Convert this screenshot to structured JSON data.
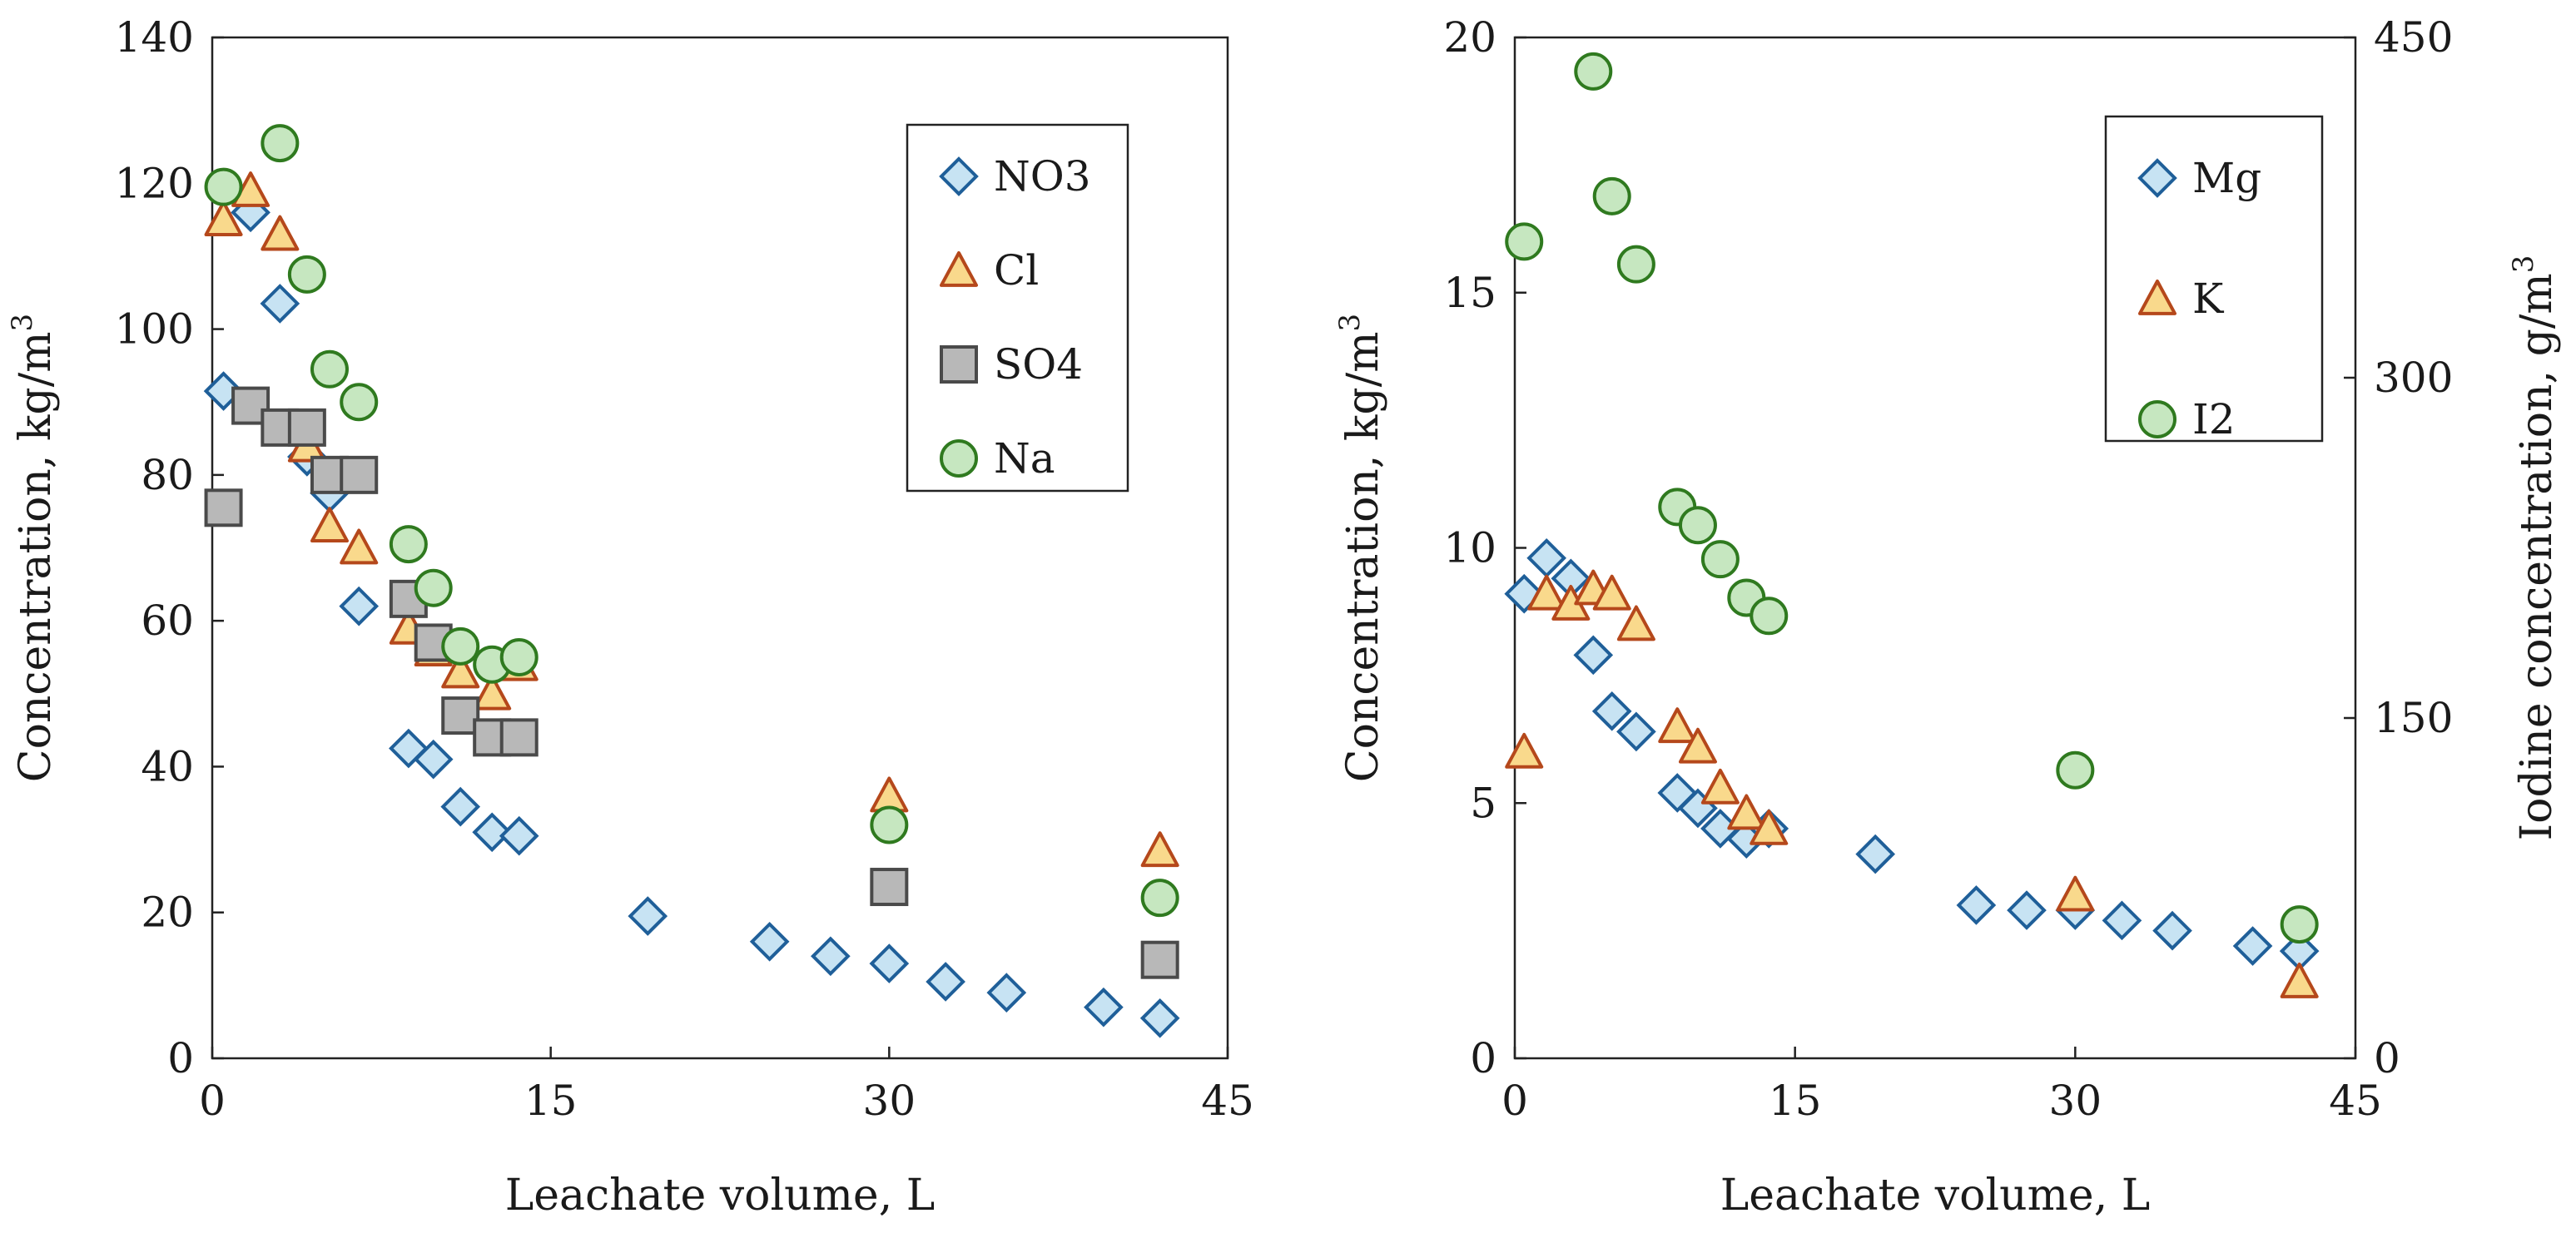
{
  "chart_data": [
    {
      "type": "scatter",
      "title": "",
      "xlabel": "Leachate volume, L",
      "ylabel": "Concentration, kg/m",
      "ylabel_sup": "3",
      "xlim": [
        0,
        45
      ],
      "ylim": [
        0,
        140
      ],
      "xticks": [
        "0",
        "15",
        "30",
        "45"
      ],
      "yticks": [
        "0",
        "20",
        "40",
        "60",
        "80",
        "100",
        "120",
        "140"
      ],
      "legend_position": "top-right",
      "series": [
        {
          "name": "NO3",
          "marker": "diamond",
          "fill": "#c7e3f3",
          "stroke": "#1f5f99",
          "x": [
            0.5,
            1.7,
            3.0,
            4.2,
            5.2,
            6.5,
            8.7,
            9.8,
            11.0,
            12.4,
            13.6,
            19.3,
            24.7,
            27.4,
            30.0,
            32.5,
            35.2,
            39.5,
            42.0
          ],
          "y": [
            91.5,
            116.0,
            103.5,
            82.5,
            77.5,
            62.0,
            42.5,
            41.0,
            34.5,
            31.0,
            30.5,
            19.5,
            16.0,
            14.0,
            13.0,
            10.5,
            9.0,
            7.0,
            5.5
          ]
        },
        {
          "name": "Cl",
          "marker": "triangle",
          "fill": "#f9d98c",
          "stroke": "#b5481b",
          "x": [
            0.5,
            1.7,
            3.0,
            4.2,
            5.2,
            6.5,
            8.7,
            9.8,
            11.0,
            12.4,
            13.6,
            30.0,
            42.0
          ],
          "y": [
            115.0,
            119.0,
            113.0,
            84.0,
            73.0,
            70.0,
            59.0,
            56.0,
            53.0,
            50.0,
            54.0,
            36.0,
            28.5
          ]
        },
        {
          "name": "SO4",
          "marker": "square",
          "fill": "#b8b8b8",
          "stroke": "#4a4a4a",
          "x": [
            0.5,
            1.7,
            3.0,
            4.2,
            5.2,
            6.5,
            8.7,
            9.8,
            11.0,
            12.4,
            13.6,
            30.0,
            42.0
          ],
          "y": [
            75.5,
            89.5,
            86.5,
            86.5,
            80.0,
            80.0,
            63.0,
            57.0,
            47.0,
            44.0,
            44.0,
            23.5,
            13.5
          ]
        },
        {
          "name": "Na",
          "marker": "circle",
          "fill": "#c6e7c0",
          "stroke": "#2f7a1f",
          "x": [
            0.5,
            3.0,
            4.2,
            5.2,
            6.5,
            8.7,
            9.8,
            11.0,
            12.4,
            13.6,
            30.0,
            42.0
          ],
          "y": [
            119.5,
            125.5,
            107.5,
            94.5,
            90.0,
            70.5,
            64.5,
            56.5,
            54.0,
            55.0,
            32.0,
            22.0
          ]
        }
      ]
    },
    {
      "type": "scatter",
      "title": "",
      "xlabel": "Leachate volume, L",
      "ylabel": "Concentration, kg/m",
      "ylabel_sup": "3",
      "y2label": "Iodine concentration, g/m",
      "y2label_sup": "3",
      "xlim": [
        0,
        45
      ],
      "ylim": [
        0,
        20
      ],
      "y2lim": [
        0,
        450
      ],
      "xticks": [
        "0",
        "15",
        "30",
        "45"
      ],
      "yticks": [
        "0",
        "5",
        "10",
        "15",
        "20"
      ],
      "y2ticks": [
        "0",
        "150",
        "300",
        "450"
      ],
      "legend_position": "top-right",
      "series": [
        {
          "name": "Mg",
          "axis": "y",
          "marker": "diamond",
          "fill": "#c7e3f3",
          "stroke": "#1f5f99",
          "x": [
            0.5,
            1.7,
            3.0,
            4.2,
            5.2,
            6.5,
            8.7,
            9.8,
            11.0,
            12.4,
            13.6,
            19.3,
            24.7,
            27.4,
            30.0,
            32.5,
            35.2,
            39.5,
            42.0
          ],
          "y": [
            9.1,
            9.8,
            9.4,
            7.9,
            6.8,
            6.4,
            5.2,
            4.9,
            4.5,
            4.3,
            4.5,
            4.0,
            3.0,
            2.9,
            2.9,
            2.7,
            2.5,
            2.2,
            2.1
          ]
        },
        {
          "name": "K",
          "axis": "y",
          "marker": "triangle",
          "fill": "#f9d98c",
          "stroke": "#b5481b",
          "x": [
            0.5,
            1.7,
            3.0,
            4.2,
            5.2,
            6.5,
            8.7,
            9.8,
            11.0,
            12.4,
            13.6,
            30.0,
            42.0
          ],
          "y": [
            6.0,
            9.1,
            8.9,
            9.2,
            9.1,
            8.5,
            6.5,
            6.1,
            5.3,
            4.8,
            4.5,
            3.2,
            1.5
          ]
        },
        {
          "name": "I2",
          "axis": "y2",
          "marker": "circle",
          "fill": "#c6e7c0",
          "stroke": "#2f7a1f",
          "x": [
            0.5,
            4.2,
            5.2,
            6.5,
            8.7,
            9.8,
            11.0,
            12.4,
            13.6,
            30.0,
            42.0
          ],
          "y": [
            360,
            435,
            380,
            350,
            243,
            235,
            220,
            203,
            195,
            127,
            59
          ]
        }
      ]
    }
  ]
}
